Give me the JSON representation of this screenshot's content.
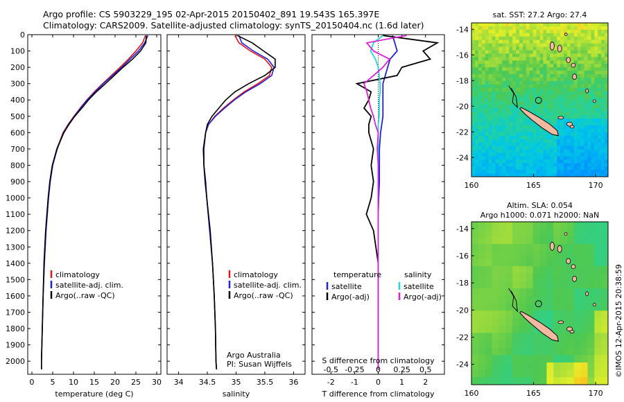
{
  "header": {
    "line1": "Argo profile: CS 5903229_195 02-Apr-2015 20150402_891 19.543S 165.397E",
    "line2": "Climatology: CARS2009. Satellite-adjusted climatology: synTS_20150404.nc (1.6d later)"
  },
  "watermark": "©IMOS 12-Apr-2015 20:38:59",
  "colors": {
    "climatology": "#e8141b",
    "satellite": "#1f1fd6",
    "argo": "#000000",
    "sal_satellite": "#22d4e0",
    "sal_argo": "#e01fd8",
    "land": "#f2b9a0"
  },
  "chart_data": [
    {
      "type": "line",
      "id": "temperature",
      "xlabel": "temperature (deg C)",
      "ylabel": "",
      "xlim": [
        -1,
        31
      ],
      "ylim": [
        2080,
        0
      ],
      "xticks": [
        0,
        5,
        10,
        15,
        20,
        25,
        30
      ],
      "yticks": [
        0,
        100,
        200,
        300,
        400,
        500,
        600,
        700,
        800,
        900,
        1000,
        1100,
        1200,
        1300,
        1400,
        1500,
        1600,
        1700,
        1800,
        1900,
        2000
      ],
      "legend": [
        "climatology",
        "satellite-adj. clim.",
        "Argo(..raw -QC)"
      ],
      "depth": [
        5,
        50,
        100,
        150,
        200,
        250,
        300,
        350,
        400,
        450,
        500,
        550,
        600,
        700,
        800,
        900,
        1000,
        1200,
        1400,
        1600,
        1800,
        2000,
        2050
      ],
      "series": [
        {
          "name": "climatology",
          "values": [
            27.3,
            26.6,
            25.0,
            23.2,
            21.2,
            19.1,
            17.0,
            15.0,
            13.2,
            11.6,
            10.1,
            8.7,
            7.5,
            6.0,
            5.0,
            4.4,
            4.0,
            3.4,
            3.0,
            2.7,
            2.5,
            2.3,
            2.3
          ]
        },
        {
          "name": "satellite-adj. clim.",
          "values": [
            27.9,
            27.1,
            25.6,
            23.6,
            21.6,
            19.4,
            17.2,
            15.2,
            13.3,
            11.7,
            10.2,
            8.8,
            7.6,
            6.1,
            5.0,
            4.4,
            4.0,
            3.4,
            3.0,
            2.7,
            2.5,
            2.3,
            2.3
          ]
        },
        {
          "name": "Argo(..raw -QC)",
          "values": [
            27.5,
            27.4,
            26.1,
            24.2,
            21.9,
            19.8,
            17.7,
            15.5,
            13.6,
            12.0,
            10.3,
            8.9,
            7.7,
            6.0,
            4.9,
            4.3,
            3.9,
            3.3,
            2.9,
            2.7,
            2.5,
            2.3,
            2.3
          ]
        }
      ]
    },
    {
      "type": "line",
      "id": "salinity",
      "xlabel": "salinity",
      "xlim": [
        33.8,
        36.2
      ],
      "ylim": [
        2080,
        0
      ],
      "xticks": [
        34,
        34.5,
        35,
        35.5,
        36
      ],
      "legend": [
        "climatology",
        "satellite-adj. clim.",
        "Argo(..raw -QC)"
      ],
      "annotation": [
        "Argo Australia",
        "PI: Susan Wijffels"
      ],
      "depth": [
        5,
        50,
        100,
        150,
        200,
        250,
        300,
        350,
        400,
        450,
        500,
        550,
        600,
        700,
        800,
        900,
        1000,
        1200,
        1400,
        1600,
        1800,
        2000,
        2050
      ],
      "series": [
        {
          "name": "climatology",
          "values": [
            34.98,
            35.05,
            35.25,
            35.5,
            35.62,
            35.58,
            35.38,
            35.14,
            34.95,
            34.78,
            34.63,
            34.52,
            34.47,
            34.44,
            34.44,
            34.46,
            34.49,
            34.54,
            34.59,
            34.62,
            34.64,
            34.65,
            34.66
          ]
        },
        {
          "name": "satellite-adj. clim.",
          "values": [
            35.05,
            35.1,
            35.3,
            35.55,
            35.66,
            35.62,
            35.42,
            35.17,
            34.97,
            34.8,
            34.64,
            34.52,
            34.47,
            34.44,
            34.44,
            34.46,
            34.49,
            34.54,
            34.59,
            34.62,
            34.64,
            34.65,
            34.66
          ]
        },
        {
          "name": "Argo(..raw -QC)",
          "values": [
            35.02,
            35.28,
            35.48,
            35.68,
            35.68,
            35.5,
            35.22,
            34.98,
            34.82,
            34.7,
            34.58,
            34.5,
            34.47,
            34.43,
            34.44,
            34.47,
            34.49,
            34.55,
            34.59,
            34.62,
            34.64,
            34.65,
            34.66
          ]
        }
      ]
    },
    {
      "type": "line",
      "id": "differences",
      "xlabel": "T difference from climatology",
      "xlabel2": "S difference from climatology",
      "xlim": [
        -2.8,
        2.8
      ],
      "xticks": [
        -2,
        -1,
        0,
        1,
        2
      ],
      "xticks2": [
        -0.5,
        -0.25,
        0,
        0.25,
        0.5
      ],
      "xlim2": [
        -0.7,
        0.7
      ],
      "ylim": [
        2080,
        0
      ],
      "legend_temperature_title": "temperature",
      "legend_salinity_title": "salinity",
      "legend_temperature": [
        "satellite",
        "Argo(-adj)"
      ],
      "legend_salinity": [
        "satellite",
        "Argo(-adj)"
      ],
      "depth": [
        5,
        50,
        100,
        150,
        200,
        250,
        300,
        350,
        400,
        450,
        500,
        550,
        600,
        700,
        800,
        900,
        1000,
        1100,
        1200,
        1400,
        1600,
        1800,
        2000,
        2050
      ],
      "series": [
        {
          "name": "T satellite",
          "values": [
            0.6,
            0.7,
            0.8,
            0.5,
            0.4,
            0.3,
            0.2,
            0.2,
            0.2,
            0.2,
            0.2,
            0.15,
            0.1,
            0.05,
            0.05,
            0.05,
            0.02,
            0.0,
            0.0,
            0.0,
            0.0,
            0.0,
            0.0,
            0.0
          ]
        },
        {
          "name": "T Argo(-adj)",
          "values": [
            0.2,
            2.5,
            1.9,
            2.2,
            1.0,
            0.8,
            -0.9,
            -0.3,
            -0.4,
            -0.6,
            -0.3,
            -0.4,
            -0.4,
            -0.2,
            -0.3,
            -0.2,
            -0.3,
            -0.5,
            -0.2,
            0.0,
            0.0,
            0.0,
            0.0,
            0.0
          ]
        },
        {
          "name": "S satellite",
          "values": [
            0.05,
            -0.05,
            -0.08,
            -0.03,
            0.0,
            0.01,
            0.02,
            0.02,
            0.01,
            0.01,
            0.01,
            0.0,
            0.0,
            0.0,
            0.0,
            0.0,
            0.0,
            0.0,
            0.0,
            0.0,
            0.0,
            0.0,
            0.0,
            0.0
          ]
        },
        {
          "name": "S Argo(-adj)",
          "values": [
            0.3,
            -0.12,
            -0.05,
            0.12,
            0.05,
            -0.05,
            -0.15,
            -0.12,
            -0.1,
            -0.08,
            -0.05,
            -0.03,
            0.0,
            -0.01,
            0.0,
            0.0,
            0.0,
            0.0,
            0.0,
            0.0,
            0.0,
            0.0,
            0.0,
            0.0
          ]
        }
      ]
    },
    {
      "type": "heatmap",
      "id": "sst-map",
      "title": "sat. SST: 27.2  Argo: 27.4",
      "xlim": [
        160,
        171
      ],
      "ylim": [
        -25.5,
        -13.5
      ],
      "xticks": [
        160,
        165,
        170
      ],
      "yticks": [
        -14,
        -16,
        -18,
        -20,
        -22,
        -24
      ],
      "marker": {
        "lon": 165.397,
        "lat": -19.543
      }
    },
    {
      "type": "heatmap",
      "id": "sla-map",
      "title": "Altim. SLA: 0.054",
      "subtitle": "Argo h1000: 0.071 h2000: NaN",
      "xlim": [
        160,
        171
      ],
      "ylim": [
        -25.5,
        -13.5
      ],
      "xticks": [
        160,
        165,
        170
      ],
      "yticks": [
        -14,
        -16,
        -18,
        -20,
        -22,
        -24
      ],
      "marker": {
        "lon": 165.397,
        "lat": -19.543
      }
    }
  ]
}
